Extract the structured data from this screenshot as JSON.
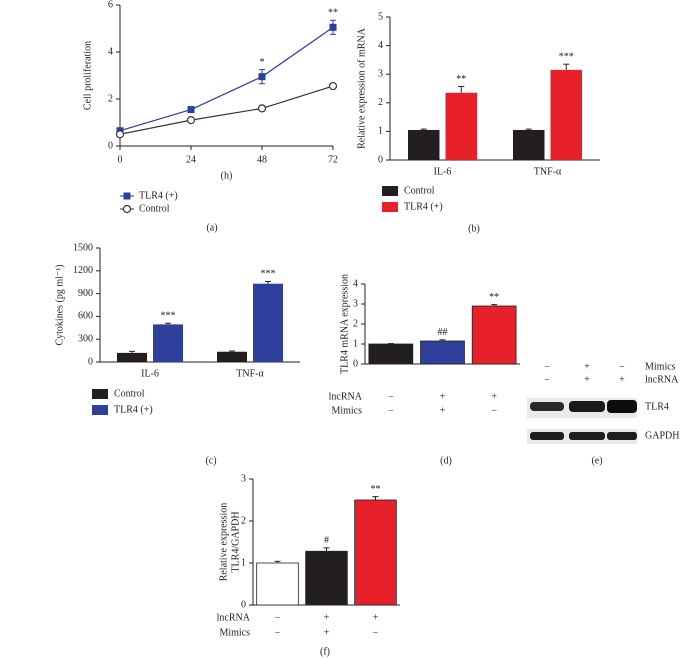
{
  "chart_data": [
    {
      "type": "line",
      "panel": "(a)",
      "xlabel": "(h)",
      "ylabel": "Cell proliferation",
      "x": [
        0,
        24,
        48,
        72
      ],
      "xlim": [
        0,
        72
      ],
      "xticks": [
        0,
        24,
        48,
        72
      ],
      "ylim": [
        0,
        6
      ],
      "yticks": [
        0,
        2,
        4,
        6
      ],
      "series": [
        {
          "name": "TLR4 (+)",
          "color": "#2b3f9e",
          "marker": "square",
          "values": [
            0.65,
            1.55,
            2.95,
            5.05
          ],
          "errors": [
            0.08,
            0.08,
            0.3,
            0.3
          ],
          "significance": [
            null,
            null,
            "*",
            "**"
          ]
        },
        {
          "name": "Control",
          "color": "#333333",
          "marker": "circle",
          "values": [
            0.5,
            1.1,
            1.6,
            2.55
          ]
        }
      ]
    },
    {
      "type": "bar",
      "panel": "(b)",
      "ylabel": "Relative expression of mRNA",
      "categories": [
        "IL-6",
        "TNF-α"
      ],
      "ylim": [
        0,
        5
      ],
      "yticks": [
        0,
        1,
        2,
        3,
        4,
        5
      ],
      "series": [
        {
          "name": "Control",
          "color": "#231f20",
          "values": [
            1.05,
            1.05
          ],
          "errors": [
            0.03,
            0.03
          ]
        },
        {
          "name": "TLR4 (+)",
          "color": "#e8202a",
          "values": [
            2.35,
            3.15
          ],
          "errors": [
            0.22,
            0.2
          ],
          "significance": [
            "**",
            "***"
          ]
        }
      ]
    },
    {
      "type": "bar",
      "panel": "(c)",
      "ylabel": "Cytokines (pg ml⁻¹)",
      "categories": [
        "IL-6",
        "TNF-α"
      ],
      "ylim": [
        0,
        1500
      ],
      "yticks": [
        0,
        300,
        600,
        900,
        1200,
        1500
      ],
      "series": [
        {
          "name": "Control",
          "color": "#231f20",
          "values": [
            120,
            135
          ],
          "errors": [
            20,
            10
          ]
        },
        {
          "name": "TLR4 (+)",
          "color": "#2e3f9c",
          "values": [
            495,
            1030
          ],
          "errors": [
            15,
            30
          ],
          "significance": [
            "***",
            "***"
          ]
        }
      ]
    },
    {
      "type": "bar",
      "panel": "(d)",
      "ylabel": "TLR4 mRNA expression",
      "ylim": [
        0,
        4
      ],
      "yticks": [
        0,
        1,
        2,
        3,
        4
      ],
      "values": [
        1.0,
        1.15,
        2.9
      ],
      "errors": [
        0.02,
        0.06,
        0.07
      ],
      "colors": [
        "#231f20",
        "#2e3f9c",
        "#e8202a"
      ],
      "significance": [
        null,
        "##",
        "**"
      ],
      "conditions": [
        {
          "name": "lncRNA",
          "values": [
            "−",
            "+",
            "+"
          ]
        },
        {
          "name": "Mimics",
          "values": [
            "−",
            "+",
            "−"
          ]
        }
      ]
    },
    {
      "type": "bar",
      "panel": "(f)",
      "ylabel": [
        "Relative expression",
        "TLR4/GAPDH"
      ],
      "ylim": [
        0,
        3
      ],
      "yticks": [
        0,
        1,
        2,
        3
      ],
      "values": [
        1.0,
        1.28,
        2.5
      ],
      "errors": [
        0.04,
        0.08,
        0.08
      ],
      "colors": [
        "#ffffff",
        "#231f20",
        "#e8202a"
      ],
      "significance": [
        null,
        "#",
        "**"
      ],
      "conditions": [
        {
          "name": "lncRNA",
          "values": [
            "−",
            "+",
            "+"
          ]
        },
        {
          "name": "Mimics",
          "values": [
            "−",
            "+",
            "−"
          ]
        }
      ]
    }
  ],
  "blot": {
    "panel": "(e)",
    "conditions": [
      {
        "name": "Mimics",
        "values": [
          "−",
          "+",
          "−"
        ]
      },
      {
        "name": "lncRNA",
        "values": [
          "−",
          "+",
          "+"
        ]
      }
    ],
    "bands": [
      "TLR4",
      "GAPDH"
    ]
  }
}
